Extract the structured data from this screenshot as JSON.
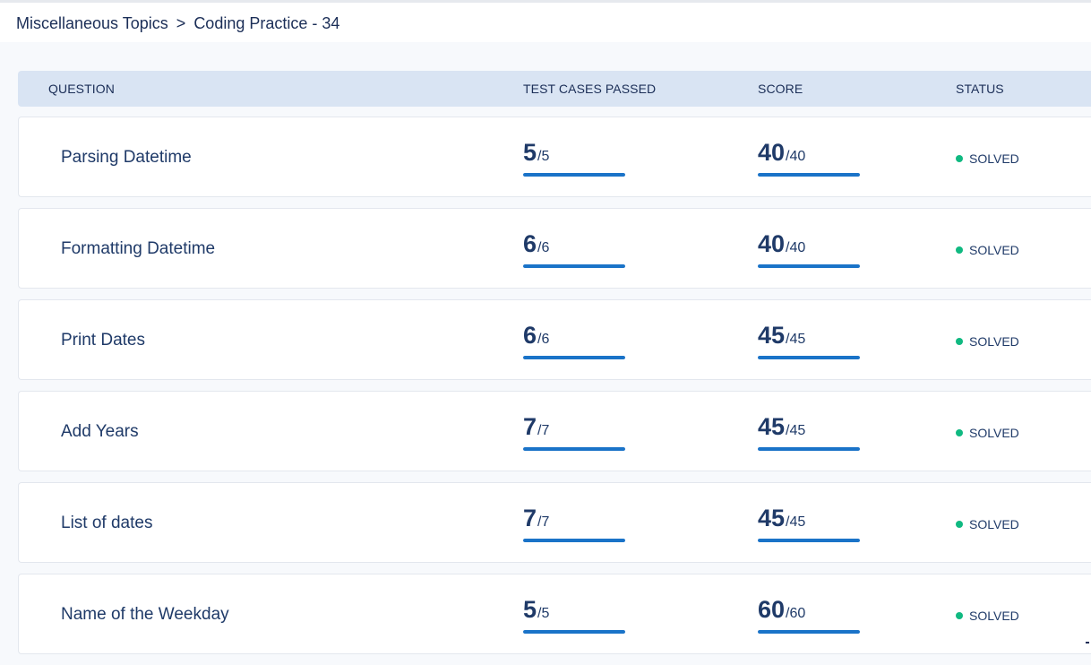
{
  "breadcrumb": {
    "parent": "Miscellaneous Topics",
    "separator": ">",
    "current": "Coding Practice - 34"
  },
  "table": {
    "headers": {
      "question": "QUESTION",
      "tests": "TEST CASES PASSED",
      "score": "SCORE",
      "status": "STATUS"
    },
    "rows": [
      {
        "question": "Parsing Datetime",
        "tests_passed": "5",
        "tests_total": "/5",
        "score": "40",
        "score_total": "/40",
        "status": "SOLVED",
        "tests_progress": 1.0,
        "score_progress": 1.0
      },
      {
        "question": "Formatting Datetime",
        "tests_passed": "6",
        "tests_total": "/6",
        "score": "40",
        "score_total": "/40",
        "status": "SOLVED",
        "tests_progress": 1.0,
        "score_progress": 1.0
      },
      {
        "question": "Print Dates",
        "tests_passed": "6",
        "tests_total": "/6",
        "score": "45",
        "score_total": "/45",
        "status": "SOLVED",
        "tests_progress": 1.0,
        "score_progress": 1.0
      },
      {
        "question": "Add Years",
        "tests_passed": "7",
        "tests_total": "/7",
        "score": "45",
        "score_total": "/45",
        "status": "SOLVED",
        "tests_progress": 1.0,
        "score_progress": 1.0
      },
      {
        "question": "List of dates",
        "tests_passed": "7",
        "tests_total": "/7",
        "score": "45",
        "score_total": "/45",
        "status": "SOLVED",
        "tests_progress": 1.0,
        "score_progress": 1.0
      },
      {
        "question": "Name of the Weekday",
        "tests_passed": "5",
        "tests_total": "/5",
        "score": "60",
        "score_total": "/60",
        "status": "SOLVED",
        "tests_progress": 1.0,
        "score_progress": 1.0
      }
    ]
  },
  "colors": {
    "accent": "#1a73c8",
    "solved": "#10b981",
    "header_bg": "#d9e4f3",
    "text": "#1f3a68"
  }
}
